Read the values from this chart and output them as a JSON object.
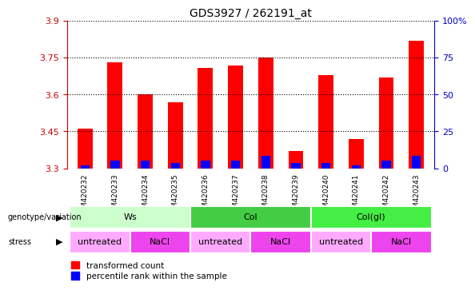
{
  "title": "GDS3927 / 262191_at",
  "samples": [
    "GSM420232",
    "GSM420233",
    "GSM420234",
    "GSM420235",
    "GSM420236",
    "GSM420237",
    "GSM420238",
    "GSM420239",
    "GSM420240",
    "GSM420241",
    "GSM420242",
    "GSM420243"
  ],
  "red_values": [
    3.46,
    3.73,
    3.6,
    3.57,
    3.71,
    3.72,
    3.75,
    3.37,
    3.68,
    3.42,
    3.67,
    3.82
  ],
  "blue_values": [
    3.31,
    3.33,
    3.33,
    3.32,
    3.33,
    3.33,
    3.35,
    3.32,
    3.32,
    3.31,
    3.33,
    3.35
  ],
  "base": 3.3,
  "ylim_left": [
    3.3,
    3.9
  ],
  "ylim_right": [
    0,
    100
  ],
  "yticks_left": [
    3.3,
    3.45,
    3.6,
    3.75,
    3.9
  ],
  "yticks_right": [
    0,
    25,
    50,
    75,
    100
  ],
  "ytick_labels_left": [
    "3.3",
    "3.45",
    "3.6",
    "3.75",
    "3.9"
  ],
  "ytick_labels_right": [
    "0",
    "25",
    "50",
    "75",
    "100%"
  ],
  "left_color": "#cc0000",
  "right_color": "#0000cc",
  "bar_width": 0.5,
  "genotype_groups": [
    {
      "label": "Ws",
      "start": 0,
      "end": 3,
      "color": "#ccffcc"
    },
    {
      "label": "Col",
      "start": 4,
      "end": 7,
      "color": "#44cc44"
    },
    {
      "label": "Col(gl)",
      "start": 8,
      "end": 11,
      "color": "#44ee44"
    }
  ],
  "stress_groups": [
    {
      "label": "untreated",
      "start": 0,
      "end": 1,
      "color": "#ffaaff"
    },
    {
      "label": "NaCl",
      "start": 2,
      "end": 3,
      "color": "#ee44ee"
    },
    {
      "label": "untreated",
      "start": 4,
      "end": 5,
      "color": "#ffaaff"
    },
    {
      "label": "NaCl",
      "start": 6,
      "end": 7,
      "color": "#ee44ee"
    },
    {
      "label": "untreated",
      "start": 8,
      "end": 9,
      "color": "#ffaaff"
    },
    {
      "label": "NaCl",
      "start": 10,
      "end": 11,
      "color": "#ee44ee"
    }
  ],
  "legend_red": "transformed count",
  "legend_blue": "percentile rank within the sample",
  "background_color": "#ffffff",
  "grid_color": "#000000",
  "tick_area_color": "#cccccc"
}
